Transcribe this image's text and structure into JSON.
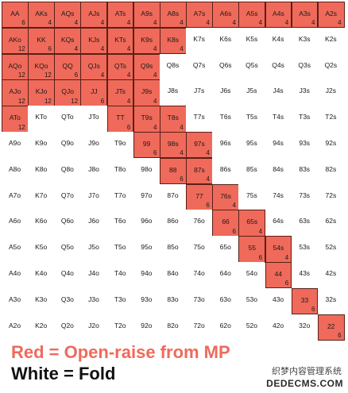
{
  "grid": {
    "rows": [
      [
        {
          "h": "AA",
          "c": "6",
          "r": true
        },
        {
          "h": "AKs",
          "c": "4",
          "r": true
        },
        {
          "h": "AQs",
          "c": "4",
          "r": true
        },
        {
          "h": "AJs",
          "c": "4",
          "r": true
        },
        {
          "h": "ATs",
          "c": "4",
          "r": true
        },
        {
          "h": "A9s",
          "c": "4",
          "r": true
        },
        {
          "h": "A8s",
          "c": "4",
          "r": true
        },
        {
          "h": "A7s",
          "c": "4",
          "r": true
        },
        {
          "h": "A6s",
          "c": "4",
          "r": true
        },
        {
          "h": "A5s",
          "c": "4",
          "r": true
        },
        {
          "h": "A4s",
          "c": "4",
          "r": true
        },
        {
          "h": "A3s",
          "c": "4",
          "r": true
        },
        {
          "h": "A2s",
          "c": "4",
          "r": true
        }
      ],
      [
        {
          "h": "AKo",
          "c": "12",
          "r": true
        },
        {
          "h": "KK",
          "c": "6",
          "r": true
        },
        {
          "h": "KQs",
          "c": "4",
          "r": true
        },
        {
          "h": "KJs",
          "c": "4",
          "r": true
        },
        {
          "h": "KTs",
          "c": "4",
          "r": true
        },
        {
          "h": "K9s",
          "c": "4",
          "r": true
        },
        {
          "h": "K8s",
          "c": "4",
          "r": true
        },
        {
          "h": "K7s",
          "c": "",
          "r": false
        },
        {
          "h": "K6s",
          "c": "",
          "r": false
        },
        {
          "h": "K5s",
          "c": "",
          "r": false
        },
        {
          "h": "K4s",
          "c": "",
          "r": false
        },
        {
          "h": "K3s",
          "c": "",
          "r": false
        },
        {
          "h": "K2s",
          "c": "",
          "r": false
        }
      ],
      [
        {
          "h": "AQo",
          "c": "12",
          "r": true
        },
        {
          "h": "KQo",
          "c": "12",
          "r": true
        },
        {
          "h": "QQ",
          "c": "6",
          "r": true
        },
        {
          "h": "QJs",
          "c": "4",
          "r": true
        },
        {
          "h": "QTs",
          "c": "4",
          "r": true
        },
        {
          "h": "Q9s",
          "c": "4",
          "r": true
        },
        {
          "h": "Q8s",
          "c": "",
          "r": false
        },
        {
          "h": "Q7s",
          "c": "",
          "r": false
        },
        {
          "h": "Q6s",
          "c": "",
          "r": false
        },
        {
          "h": "Q5s",
          "c": "",
          "r": false
        },
        {
          "h": "Q4s",
          "c": "",
          "r": false
        },
        {
          "h": "Q3s",
          "c": "",
          "r": false
        },
        {
          "h": "Q2s",
          "c": "",
          "r": false
        }
      ],
      [
        {
          "h": "AJo",
          "c": "12",
          "r": true
        },
        {
          "h": "KJo",
          "c": "12",
          "r": true
        },
        {
          "h": "QJo",
          "c": "12",
          "r": true
        },
        {
          "h": "JJ",
          "c": "6",
          "r": true
        },
        {
          "h": "JTs",
          "c": "4",
          "r": true
        },
        {
          "h": "J9s",
          "c": "4",
          "r": true
        },
        {
          "h": "J8s",
          "c": "",
          "r": false
        },
        {
          "h": "J7s",
          "c": "",
          "r": false
        },
        {
          "h": "J6s",
          "c": "",
          "r": false
        },
        {
          "h": "J5s",
          "c": "",
          "r": false
        },
        {
          "h": "J4s",
          "c": "",
          "r": false
        },
        {
          "h": "J3s",
          "c": "",
          "r": false
        },
        {
          "h": "J2s",
          "c": "",
          "r": false
        }
      ],
      [
        {
          "h": "ATo",
          "c": "12",
          "r": true
        },
        {
          "h": "KTo",
          "c": "",
          "r": false
        },
        {
          "h": "QTo",
          "c": "",
          "r": false
        },
        {
          "h": "JTo",
          "c": "",
          "r": false
        },
        {
          "h": "TT",
          "c": "6",
          "r": true
        },
        {
          "h": "T9s",
          "c": "4",
          "r": true
        },
        {
          "h": "T8s",
          "c": "4",
          "r": true
        },
        {
          "h": "T7s",
          "c": "",
          "r": false
        },
        {
          "h": "T6s",
          "c": "",
          "r": false
        },
        {
          "h": "T5s",
          "c": "",
          "r": false
        },
        {
          "h": "T4s",
          "c": "",
          "r": false
        },
        {
          "h": "T3s",
          "c": "",
          "r": false
        },
        {
          "h": "T2s",
          "c": "",
          "r": false
        }
      ],
      [
        {
          "h": "A9o",
          "c": "",
          "r": false
        },
        {
          "h": "K9o",
          "c": "",
          "r": false
        },
        {
          "h": "Q9o",
          "c": "",
          "r": false
        },
        {
          "h": "J9o",
          "c": "",
          "r": false
        },
        {
          "h": "T9o",
          "c": "",
          "r": false
        },
        {
          "h": "99",
          "c": "6",
          "r": true
        },
        {
          "h": "98s",
          "c": "4",
          "r": true
        },
        {
          "h": "97s",
          "c": "4",
          "r": true
        },
        {
          "h": "96s",
          "c": "",
          "r": false
        },
        {
          "h": "95s",
          "c": "",
          "r": false
        },
        {
          "h": "94s",
          "c": "",
          "r": false
        },
        {
          "h": "93s",
          "c": "",
          "r": false
        },
        {
          "h": "92s",
          "c": "",
          "r": false
        }
      ],
      [
        {
          "h": "A8o",
          "c": "",
          "r": false
        },
        {
          "h": "K8o",
          "c": "",
          "r": false
        },
        {
          "h": "Q8o",
          "c": "",
          "r": false
        },
        {
          "h": "J8o",
          "c": "",
          "r": false
        },
        {
          "h": "T8o",
          "c": "",
          "r": false
        },
        {
          "h": "98o",
          "c": "",
          "r": false
        },
        {
          "h": "88",
          "c": "6",
          "r": true
        },
        {
          "h": "87s",
          "c": "4",
          "r": true
        },
        {
          "h": "86s",
          "c": "",
          "r": false
        },
        {
          "h": "85s",
          "c": "",
          "r": false
        },
        {
          "h": "84s",
          "c": "",
          "r": false
        },
        {
          "h": "83s",
          "c": "",
          "r": false
        },
        {
          "h": "82s",
          "c": "",
          "r": false
        }
      ],
      [
        {
          "h": "A7o",
          "c": "",
          "r": false
        },
        {
          "h": "K7o",
          "c": "",
          "r": false
        },
        {
          "h": "Q7o",
          "c": "",
          "r": false
        },
        {
          "h": "J7o",
          "c": "",
          "r": false
        },
        {
          "h": "T7o",
          "c": "",
          "r": false
        },
        {
          "h": "97o",
          "c": "",
          "r": false
        },
        {
          "h": "87o",
          "c": "",
          "r": false
        },
        {
          "h": "77",
          "c": "6",
          "r": true
        },
        {
          "h": "76s",
          "c": "4",
          "r": true
        },
        {
          "h": "75s",
          "c": "",
          "r": false
        },
        {
          "h": "74s",
          "c": "",
          "r": false
        },
        {
          "h": "73s",
          "c": "",
          "r": false
        },
        {
          "h": "72s",
          "c": "",
          "r": false
        }
      ],
      [
        {
          "h": "A6o",
          "c": "",
          "r": false
        },
        {
          "h": "K6o",
          "c": "",
          "r": false
        },
        {
          "h": "Q6o",
          "c": "",
          "r": false
        },
        {
          "h": "J6o",
          "c": "",
          "r": false
        },
        {
          "h": "T6o",
          "c": "",
          "r": false
        },
        {
          "h": "96o",
          "c": "",
          "r": false
        },
        {
          "h": "86o",
          "c": "",
          "r": false
        },
        {
          "h": "76o",
          "c": "",
          "r": false
        },
        {
          "h": "66",
          "c": "6",
          "r": true
        },
        {
          "h": "65s",
          "c": "4",
          "r": true
        },
        {
          "h": "64s",
          "c": "",
          "r": false
        },
        {
          "h": "63s",
          "c": "",
          "r": false
        },
        {
          "h": "62s",
          "c": "",
          "r": false
        }
      ],
      [
        {
          "h": "A5o",
          "c": "",
          "r": false
        },
        {
          "h": "K5o",
          "c": "",
          "r": false
        },
        {
          "h": "Q5o",
          "c": "",
          "r": false
        },
        {
          "h": "J5o",
          "c": "",
          "r": false
        },
        {
          "h": "T5o",
          "c": "",
          "r": false
        },
        {
          "h": "95o",
          "c": "",
          "r": false
        },
        {
          "h": "85o",
          "c": "",
          "r": false
        },
        {
          "h": "75o",
          "c": "",
          "r": false
        },
        {
          "h": "65o",
          "c": "",
          "r": false
        },
        {
          "h": "55",
          "c": "6",
          "r": true
        },
        {
          "h": "54s",
          "c": "4",
          "r": true
        },
        {
          "h": "53s",
          "c": "",
          "r": false
        },
        {
          "h": "52s",
          "c": "",
          "r": false
        }
      ],
      [
        {
          "h": "A4o",
          "c": "",
          "r": false
        },
        {
          "h": "K4o",
          "c": "",
          "r": false
        },
        {
          "h": "Q4o",
          "c": "",
          "r": false
        },
        {
          "h": "J4o",
          "c": "",
          "r": false
        },
        {
          "h": "T4o",
          "c": "",
          "r": false
        },
        {
          "h": "94o",
          "c": "",
          "r": false
        },
        {
          "h": "84o",
          "c": "",
          "r": false
        },
        {
          "h": "74o",
          "c": "",
          "r": false
        },
        {
          "h": "64o",
          "c": "",
          "r": false
        },
        {
          "h": "54o",
          "c": "",
          "r": false
        },
        {
          "h": "44",
          "c": "6",
          "r": true
        },
        {
          "h": "43s",
          "c": "",
          "r": false
        },
        {
          "h": "42s",
          "c": "",
          "r": false
        }
      ],
      [
        {
          "h": "A3o",
          "c": "",
          "r": false
        },
        {
          "h": "K3o",
          "c": "",
          "r": false
        },
        {
          "h": "Q3o",
          "c": "",
          "r": false
        },
        {
          "h": "J3o",
          "c": "",
          "r": false
        },
        {
          "h": "T3o",
          "c": "",
          "r": false
        },
        {
          "h": "93o",
          "c": "",
          "r": false
        },
        {
          "h": "83o",
          "c": "",
          "r": false
        },
        {
          "h": "73o",
          "c": "",
          "r": false
        },
        {
          "h": "63o",
          "c": "",
          "r": false
        },
        {
          "h": "53o",
          "c": "",
          "r": false
        },
        {
          "h": "43o",
          "c": "",
          "r": false
        },
        {
          "h": "33",
          "c": "6",
          "r": true
        },
        {
          "h": "32s",
          "c": "",
          "r": false
        }
      ],
      [
        {
          "h": "A2o",
          "c": "",
          "r": false
        },
        {
          "h": "K2o",
          "c": "",
          "r": false
        },
        {
          "h": "Q2o",
          "c": "",
          "r": false
        },
        {
          "h": "J2o",
          "c": "",
          "r": false
        },
        {
          "h": "T2o",
          "c": "",
          "r": false
        },
        {
          "h": "92o",
          "c": "",
          "r": false
        },
        {
          "h": "82o",
          "c": "",
          "r": false
        },
        {
          "h": "72o",
          "c": "",
          "r": false
        },
        {
          "h": "62o",
          "c": "",
          "r": false
        },
        {
          "h": "52o",
          "c": "",
          "r": false
        },
        {
          "h": "42o",
          "c": "",
          "r": false
        },
        {
          "h": "32o",
          "c": "",
          "r": false
        },
        {
          "h": "22",
          "c": "6",
          "r": true
        }
      ]
    ]
  },
  "legend": {
    "red_label": "Red = Open-raise from MP",
    "white_label": "White = Fold"
  },
  "watermark": {
    "site_name": "织梦内容管理系统",
    "url": "DEDECMS.COM"
  },
  "colors": {
    "raise": "#ef6a5a",
    "fold": "#ffffff"
  }
}
